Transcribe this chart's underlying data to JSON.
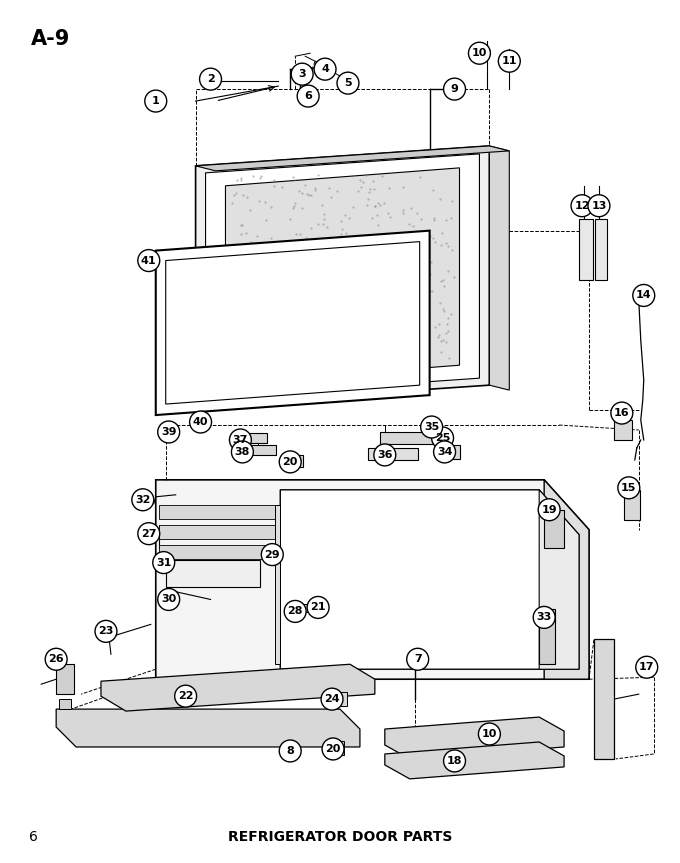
{
  "title_label": "A-9",
  "page_number": "6",
  "bottom_text": "REFRIGERATOR DOOR PARTS",
  "background_color": "#ffffff",
  "fig_width": 6.8,
  "fig_height": 8.63,
  "dpi": 100
}
